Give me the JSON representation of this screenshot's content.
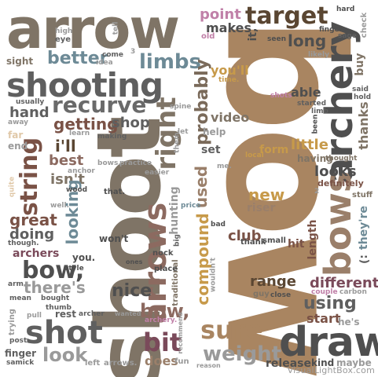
{
  "watermark": "VisualLightBox.com",
  "words": [
    {
      "text": "arrow",
      "color": "#7f7466"
    },
    {
      "text": "bow",
      "color": "#a98561"
    },
    {
      "text": "shoot",
      "color": "#7f7466"
    },
    {
      "text": "shooting",
      "color": "#5f5f5f"
    },
    {
      "text": "draw",
      "color": "#4f4f4f"
    },
    {
      "text": "archery",
      "color": "#4f4f4f"
    },
    {
      "text": "bows",
      "color": "#9a7f6a"
    },
    {
      "text": "arrows",
      "color": "#8c6a60"
    },
    {
      "text": "target",
      "color": "#5a4632"
    },
    {
      "text": "string",
      "color": "#7a5246"
    },
    {
      "text": "shot",
      "color": "#5f5f5f"
    },
    {
      "text": "sure",
      "color": "#a98561"
    },
    {
      "text": "weight",
      "color": "#9a9a9a"
    },
    {
      "text": "bit",
      "color": "#7a4a5a"
    },
    {
      "text": "recurve",
      "color": "#6a6a6a"
    },
    {
      "text": "limbs",
      "color": "#6d8a96"
    },
    {
      "text": "right",
      "color": "#7f7466"
    },
    {
      "text": "bow,",
      "color": "#4f4f4f"
    },
    {
      "text": "bow,",
      "color": "#8c6a60"
    },
    {
      "text": "probably",
      "color": "#7a6a5a"
    },
    {
      "text": "compound",
      "color": "#c79a4a"
    },
    {
      "text": "better",
      "color": "#6d8a96"
    },
    {
      "text": "point",
      "color": "#c080a8"
    },
    {
      "text": "makes",
      "color": "#4f4f4f"
    },
    {
      "text": "long",
      "color": "#4f4f4f"
    },
    {
      "text": "hand",
      "color": "#5f5f5f"
    },
    {
      "text": "getting",
      "color": "#7a5246"
    },
    {
      "text": "shop",
      "color": "#5f5f5f"
    },
    {
      "text": "i'll",
      "color": "#5a4632"
    },
    {
      "text": "best",
      "color": "#8c6a60"
    },
    {
      "text": "isn't",
      "color": "#7f7466"
    },
    {
      "text": "looking",
      "color": "#6d8a96"
    },
    {
      "text": "great",
      "color": "#7a5246"
    },
    {
      "text": "doing",
      "color": "#5f5f5f"
    },
    {
      "text": "archers",
      "color": "#7a4a5a"
    },
    {
      "text": "there's",
      "color": "#9a9a9a"
    },
    {
      "text": "nice",
      "color": "#4f4f4f"
    },
    {
      "text": "look",
      "color": "#9a9a9a"
    },
    {
      "text": "used",
      "color": "#9a7f6a"
    },
    {
      "text": "new",
      "color": "#c79a4a"
    },
    {
      "text": "riser",
      "color": "#9a7f6a"
    },
    {
      "text": "club",
      "color": "#7a5246"
    },
    {
      "text": "range",
      "color": "#5a4632"
    },
    {
      "text": "using",
      "color": "#5f5f5f"
    },
    {
      "text": "different",
      "color": "#7a4a5a"
    },
    {
      "text": "start",
      "color": "#7a5246"
    },
    {
      "text": "looks",
      "color": "#4f4f4f"
    },
    {
      "text": "little",
      "color": "#c79a4a"
    },
    {
      "text": "length",
      "color": "#7a5246"
    },
    {
      "text": "thanks",
      "color": "#7f7466"
    },
    {
      "text": "buy",
      "color": "#7f7466"
    },
    {
      "text": "video",
      "color": "#7f7466"
    },
    {
      "text": "form",
      "color": "#c79a4a"
    },
    {
      "text": "set",
      "color": "#5f5f5f"
    },
    {
      "text": "able",
      "color": "#4f4f4f"
    },
    {
      "text": "you'll",
      "color": "#c79a4a"
    },
    {
      "text": "help",
      "color": "#9a9a9a"
    },
    {
      "text": "it,",
      "color": "#4f4f4f"
    },
    {
      "text": "hunting",
      "color": "#9a9a9a"
    },
    {
      "text": "release",
      "color": "#4f4f4f"
    },
    {
      "text": "kind",
      "color": "#4f4f4f"
    },
    {
      "text": "maybe",
      "color": "#9a9a9a"
    },
    {
      "text": "does",
      "color": "#9a7f6a"
    },
    {
      "text": "fun",
      "color": "#9a9a9a"
    },
    {
      "text": "they're",
      "color": "#6d8a96"
    },
    {
      "text": ":)",
      "color": "#5f5f5f"
    },
    {
      "text": "he's",
      "color": "#9a9a9a"
    },
    {
      "text": "definitely",
      "color": "#7a5246"
    },
    {
      "text": "stuff",
      "color": "#7f7466"
    },
    {
      "text": "having",
      "color": "#7f7466"
    },
    {
      "text": "thought",
      "color": "#7f7466"
    },
    {
      "text": "won't",
      "color": "#4f4f4f"
    },
    {
      "text": "you.",
      "color": "#4f4f4f"
    },
    {
      "text": "rest",
      "color": "#5f5f5f"
    },
    {
      "text": "sight",
      "color": "#7f7466"
    },
    {
      "text": "finger",
      "color": "#5f5f5f"
    },
    {
      "text": "trying",
      "color": "#9a9a9a"
    },
    {
      "text": "left",
      "color": "#9a9a9a"
    },
    {
      "text": "arrows.",
      "color": "#9a9a9a"
    },
    {
      "text": "traditional",
      "color": "#7f7466"
    },
    {
      "text": "place",
      "color": "#4f4f4f"
    },
    {
      "text": "nock",
      "color": "#4f4f4f"
    },
    {
      "text": "hit",
      "color": "#7a5246"
    },
    {
      "text": "thank",
      "color": "#4f4f4f"
    },
    {
      "text": "small",
      "color": "#4f4f4f"
    },
    {
      "text": "guy",
      "color": "#7f7466"
    },
    {
      "text": "close",
      "color": "#4f4f4f"
    },
    {
      "text": "couple",
      "color": "#c080a8"
    },
    {
      "text": "carbon",
      "color": "#9a9a9a"
    },
    {
      "text": "usually",
      "color": "#5f5f5f"
    },
    {
      "text": "learn",
      "color": "#9a9a9a"
    },
    {
      "text": "making",
      "color": "#5f5f5f"
    },
    {
      "text": "anchor",
      "color": "#9a9a9a"
    },
    {
      "text": "bows.",
      "color": "#9a9a9a"
    },
    {
      "text": "practice",
      "color": "#9a9a9a"
    },
    {
      "text": "easier",
      "color": "#9a9a9a"
    },
    {
      "text": "them.",
      "color": "#9a9a9a"
    },
    {
      "text": "let",
      "color": "#9a9a9a"
    },
    {
      "text": "spine",
      "color": "#9a9a9a"
    },
    {
      "text": "wood",
      "color": "#4f4f4f"
    },
    {
      "text": "that.",
      "color": "#4f4f4f"
    },
    {
      "text": "well.",
      "color": "#9a9a9a"
    },
    {
      "text": "quite",
      "color": "#e0c8a8"
    },
    {
      "text": "though.",
      "color": "#5f5f5f"
    },
    {
      "text": "style",
      "color": "#4f4f4f"
    },
    {
      "text": "ones",
      "color": "#4f4f4f"
    },
    {
      "text": "mean",
      "color": "#5f5f5f"
    },
    {
      "text": "bought",
      "color": "#5f5f5f"
    },
    {
      "text": "thumb",
      "color": "#5f5f5f"
    },
    {
      "text": "archer",
      "color": "#5f5f5f"
    },
    {
      "text": "wanted",
      "color": "#9a9a9a"
    },
    {
      "text": "archery.",
      "color": "#c080a8"
    },
    {
      "text": "pull",
      "color": "#9a9a9a"
    },
    {
      "text": "post",
      "color": "#5f5f5f"
    },
    {
      "text": "samick",
      "color": "#5f5f5f"
    },
    {
      "text": "arm",
      "color": "#5f5f5f"
    },
    {
      "text": "hard",
      "color": "#4f4f4f"
    },
    {
      "text": "fingers",
      "color": "#4f4f4f"
    },
    {
      "text": "sage",
      "color": "#5f5f5f"
    },
    {
      "text": "check",
      "color": "#9a9a9a"
    },
    {
      "text": "seen",
      "color": "#4f4f4f"
    },
    {
      "text": "likely",
      "color": "#9a9a9a"
    },
    {
      "text": "said",
      "color": "#5f5f5f"
    },
    {
      "text": "hold",
      "color": "#5f5f5f"
    },
    {
      "text": "shots",
      "color": "#c080a8"
    },
    {
      "text": "started",
      "color": "#5f5f5f"
    },
    {
      "text": "limb",
      "color": "#5f5f5f"
    },
    {
      "text": "time.",
      "color": "#c79a4a"
    },
    {
      "text": "old",
      "color": "#c080a8"
    },
    {
      "text": "eye",
      "color": "#5f5f5f"
    },
    {
      "text": "high",
      "color": "#9a9a9a"
    },
    {
      "text": "tell",
      "color": "#9a9a9a"
    },
    {
      "text": "idea",
      "color": "#9a9a9a"
    },
    {
      "text": "come",
      "color": "#5f5f5f"
    },
    {
      "text": "3",
      "color": "#9a9a9a"
    },
    {
      "text": "far",
      "color": "#e0c8a8"
    },
    {
      "text": "end",
      "color": "#9a9a9a"
    },
    {
      "text": "away",
      "color": "#9a9a9a"
    },
    {
      "text": "price",
      "color": "#6d8a96"
    },
    {
      "text": "local",
      "color": "#c79a4a"
    },
    {
      "text": "me.",
      "color": "#9a9a9a"
    },
    {
      "text": "bad",
      "color": "#4f4f4f"
    },
    {
      "text": "wouldn't",
      "color": "#9a9a9a"
    },
    {
      "text": "big",
      "color": "#5f5f5f"
    },
    {
      "text": "recommend",
      "color": "#9a9a9a"
    },
    {
      "text": "reason",
      "color": "#9a9a9a"
    },
    {
      "text": "been",
      "color": "#4f4f4f"
    },
    {
      "text": "2",
      "color": "#9a9a9a"
    }
  ]
}
